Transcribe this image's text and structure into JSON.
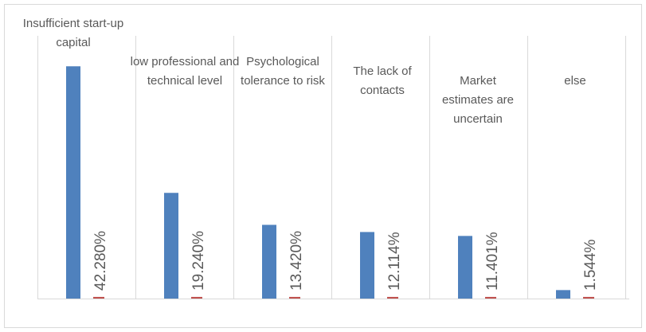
{
  "chart_data": {
    "type": "bar",
    "categories": [
      "Insufficient start-up capital",
      "low professional and technical level",
      "Psychological tolerance to risk",
      "The lack of contacts",
      "Market estimates are uncertain",
      "else"
    ],
    "series": [
      {
        "color": "#4f81bd",
        "values": [
          42.28,
          19.24,
          13.42,
          12.114,
          11.401,
          1.544
        ],
        "value_labels": [
          "42.280%",
          "19.240%",
          "13.420%",
          "12.114%",
          "11.401%",
          "1.544%"
        ]
      },
      {
        "color": "#c0504d",
        "values": [
          0.3,
          0.3,
          0.3,
          0.3,
          0.3,
          0.3
        ]
      }
    ],
    "grid": true
  }
}
